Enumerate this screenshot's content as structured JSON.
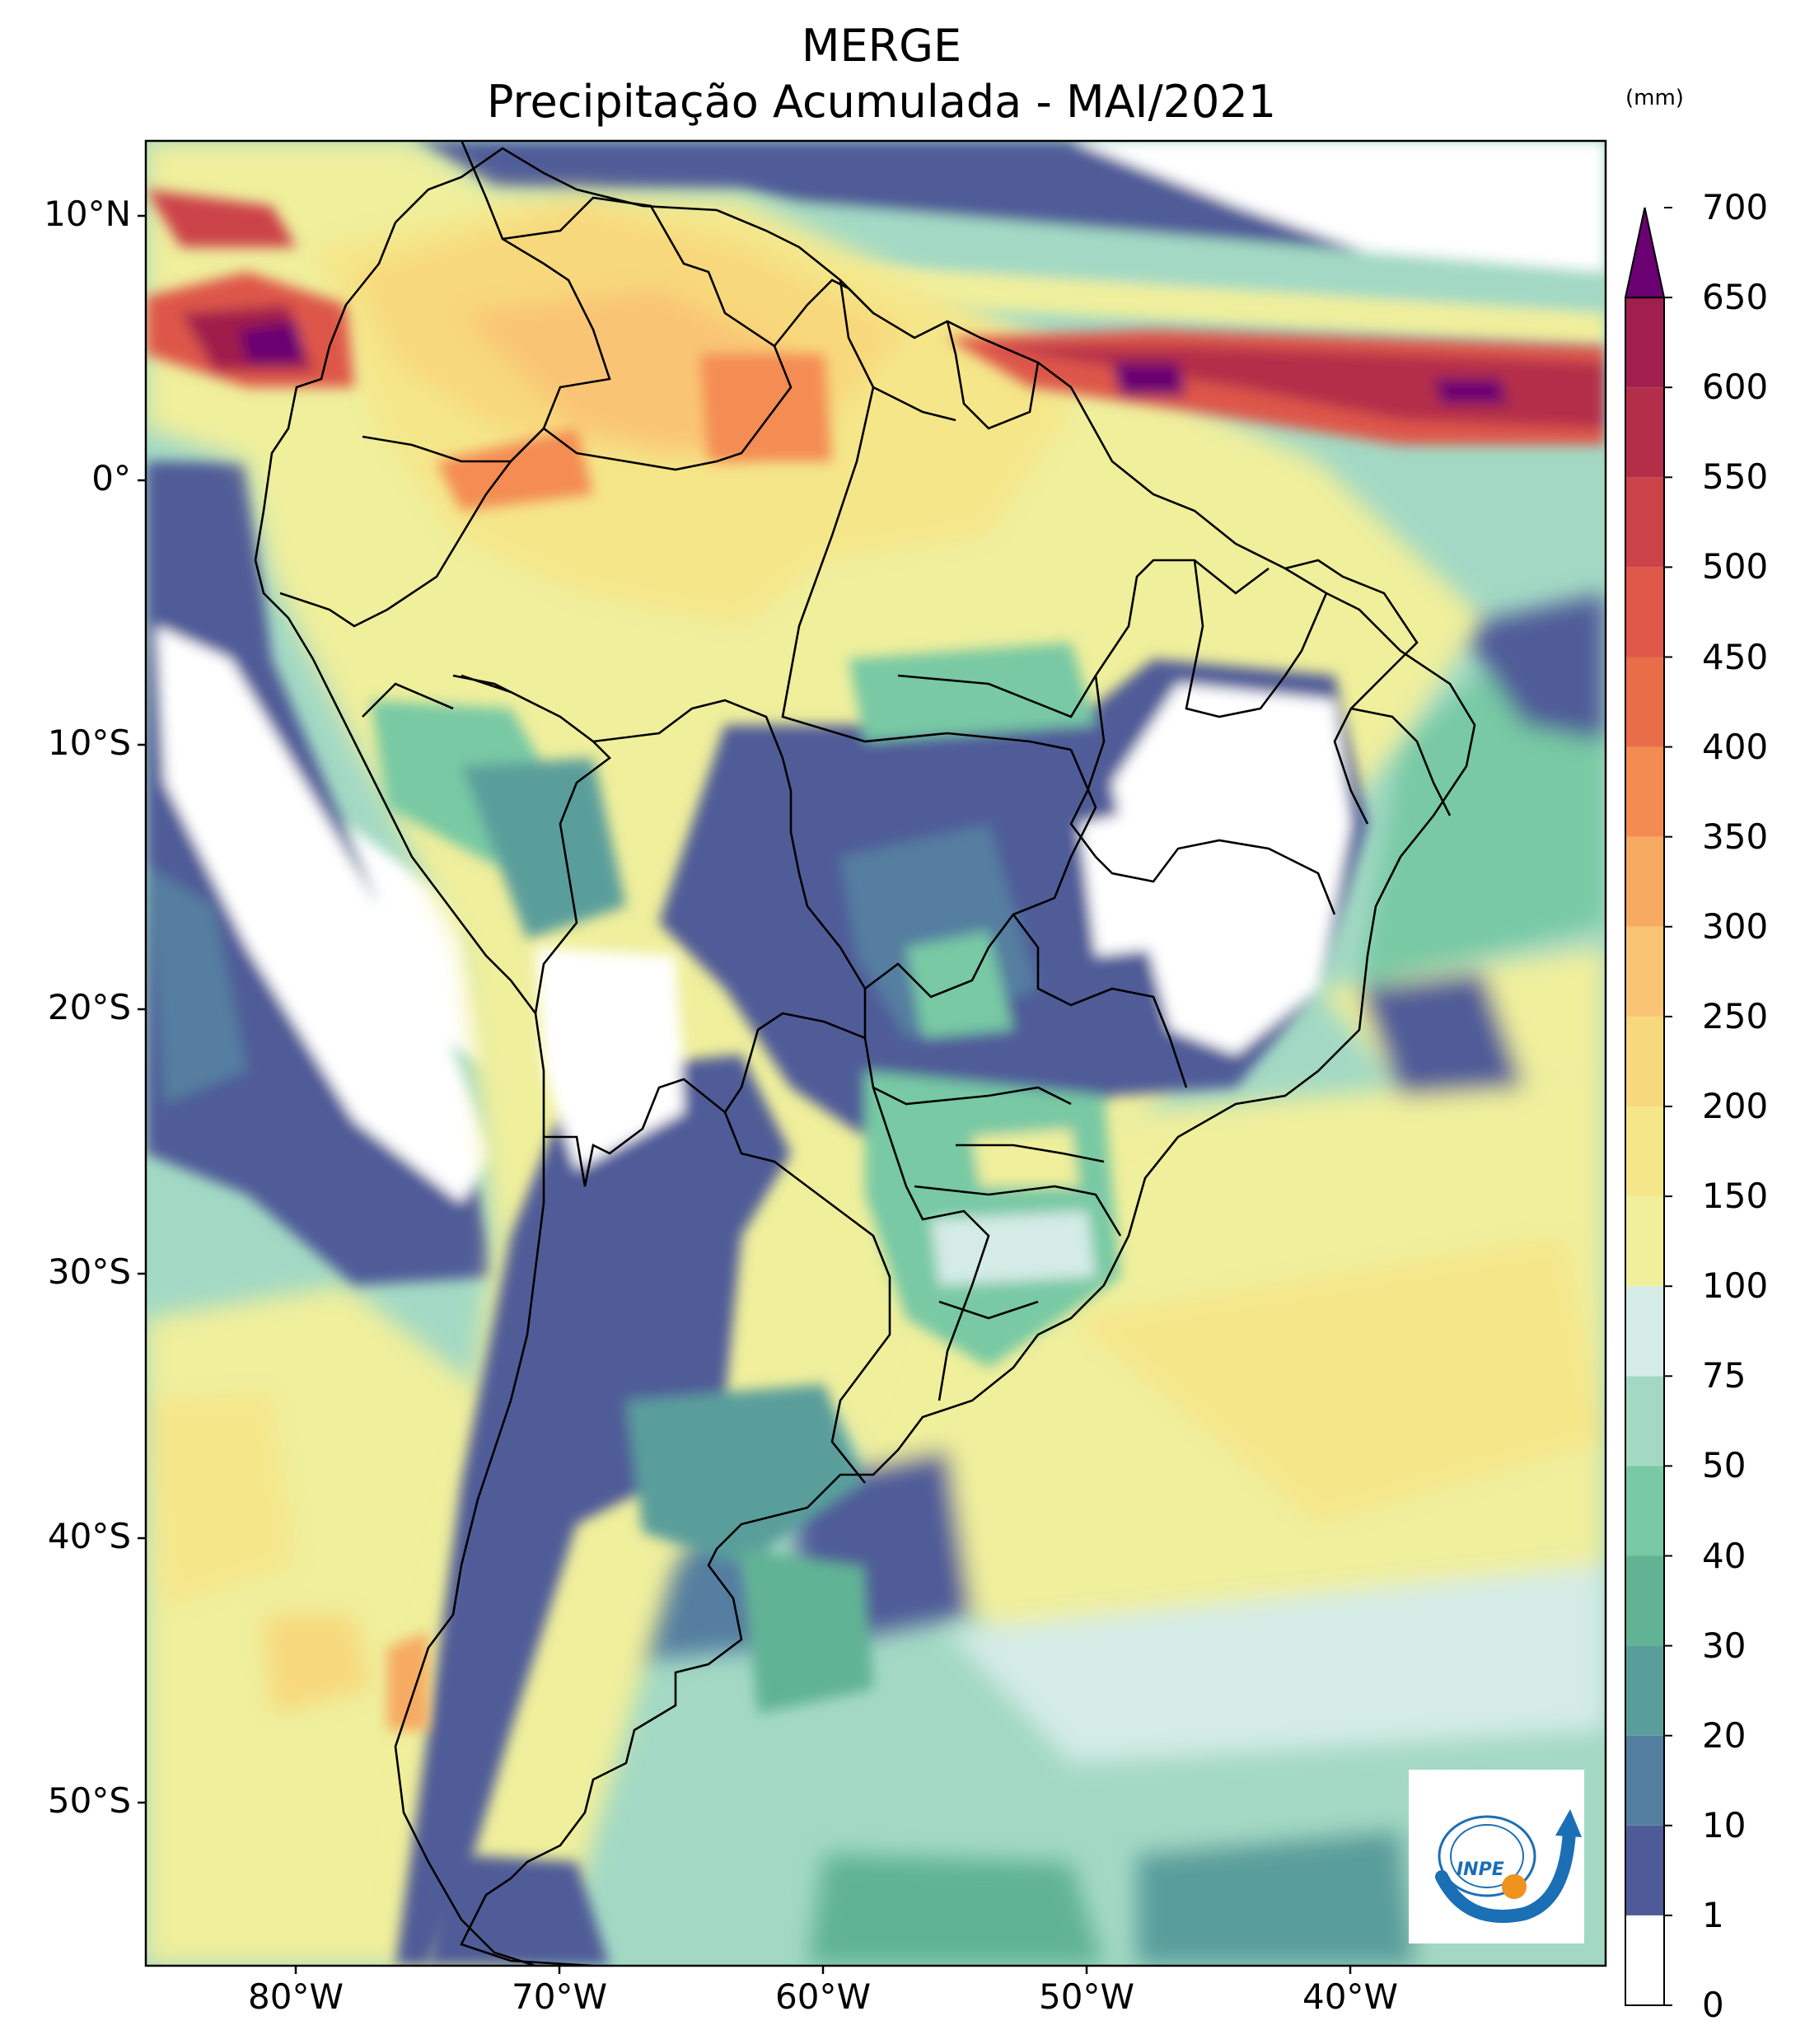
{
  "title": {
    "line1": "MERGE",
    "line2": "Precipitação Acumulada - MAI/2021"
  },
  "map": {
    "region": "South America",
    "lat_ticks": [
      "10°N",
      "0°",
      "10°S",
      "20°S",
      "30°S",
      "40°S",
      "50°S"
    ],
    "lon_ticks": [
      "80°W",
      "70°W",
      "60°W",
      "50°W",
      "40°W"
    ],
    "lat_tick_values": [
      10,
      0,
      -10,
      -20,
      -30,
      -40,
      -50
    ],
    "lon_tick_values": [
      -80,
      -70,
      -60,
      -50,
      -40
    ],
    "lat_range": [
      -56,
      13
    ],
    "lon_range": [
      -85,
      -29.5
    ]
  },
  "colorbar": {
    "unit": "(mm)",
    "levels": [
      "0",
      "1",
      "10",
      "20",
      "30",
      "40",
      "50",
      "75",
      "100",
      "150",
      "200",
      "250",
      "300",
      "350",
      "400",
      "450",
      "500",
      "550",
      "600",
      "650",
      "700"
    ],
    "colors": [
      "#ffffff",
      "#4f5b98",
      "#547ea0",
      "#5a9e9b",
      "#61b394",
      "#78c9a4",
      "#a3d9c4",
      "#d4ebe6",
      "#efef9c",
      "#f5e68a",
      "#f8d87c",
      "#f9c574",
      "#f6aa62",
      "#f48c52",
      "#ea6d4a",
      "#de5749",
      "#cc4249",
      "#b42e4a",
      "#a01f4c"
    ],
    "extend_color": "#6a0072"
  },
  "logo": {
    "name": "inpe-logo",
    "text": "INPE"
  }
}
